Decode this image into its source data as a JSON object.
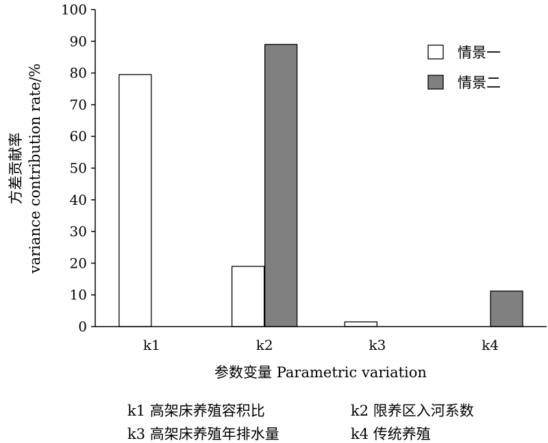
{
  "chart_data": {
    "type": "bar",
    "categories": [
      "k1",
      "k2",
      "k3",
      "k4"
    ],
    "series": [
      {
        "name": "情景一",
        "values": [
          79.5,
          19,
          1.5,
          0
        ],
        "color": "#ffffff"
      },
      {
        "name": "情景二",
        "values": [
          0,
          89,
          0,
          11.2
        ],
        "color": "#808080"
      }
    ],
    "ylim": [
      0,
      100
    ],
    "yticks": [
      0,
      10,
      20,
      30,
      40,
      50,
      60,
      70,
      80,
      90,
      100
    ],
    "ylabel_cn": "方差贡献率",
    "ylabel_en": "variance contribution rate/%",
    "xlabel": "参数变量 Parametric variation",
    "grid": false,
    "legend_position": "top-right"
  },
  "notes": [
    "k1 高架床养殖容积比",
    "k2 限养区入河系数",
    "k3 高架床养殖年排水量",
    "k4 传统养殖"
  ]
}
